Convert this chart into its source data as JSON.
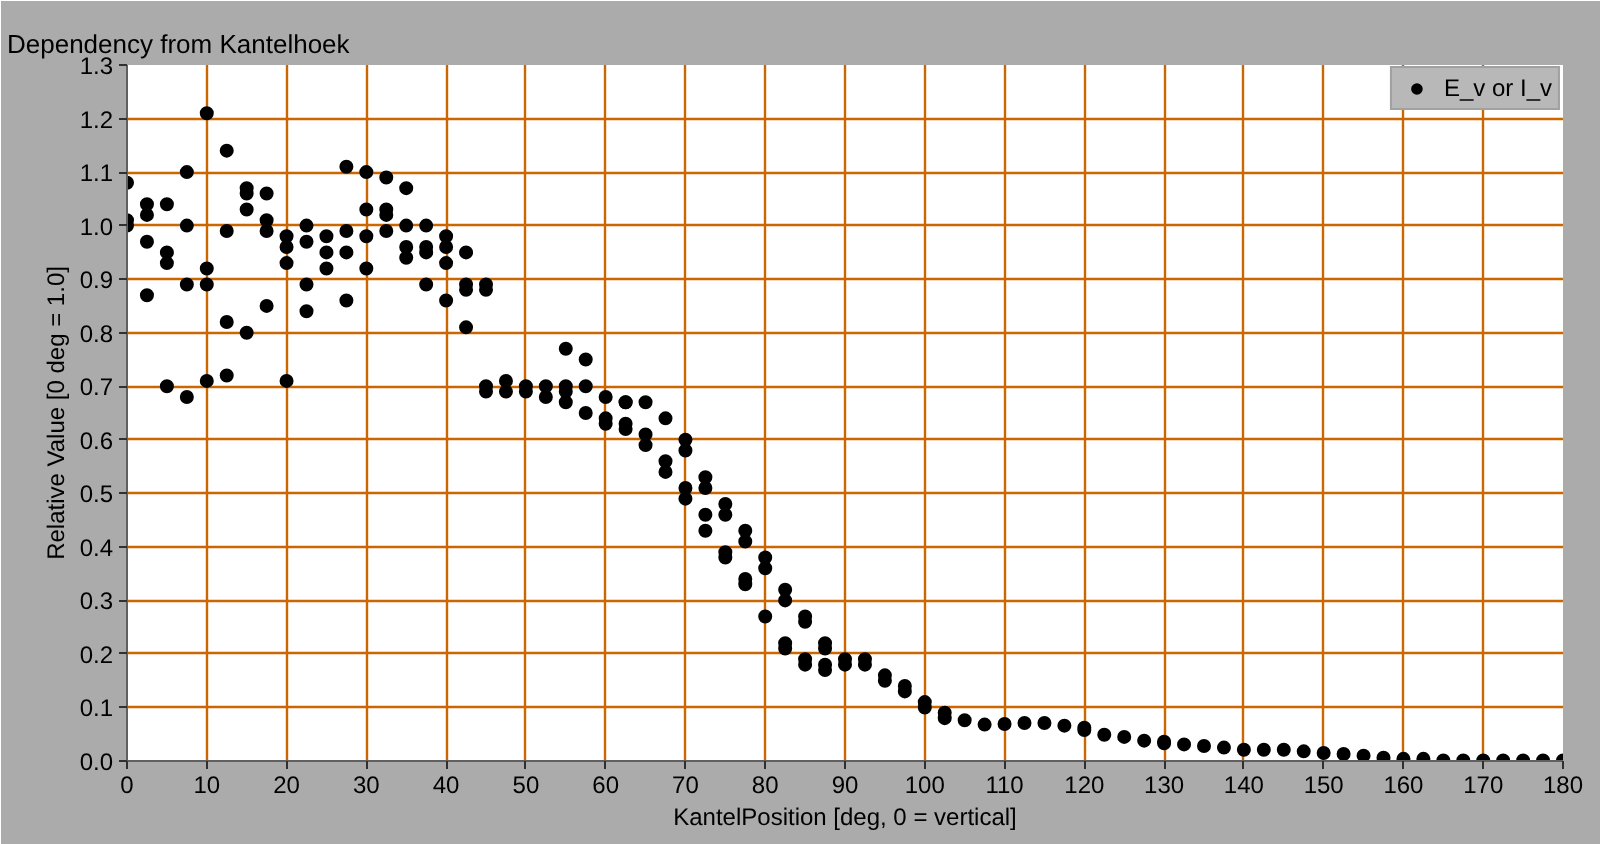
{
  "chart_data": {
    "type": "scatter",
    "title": "Dependency from Kantelhoek",
    "xlabel": "KantelPosition [deg, 0 = vertical]",
    "ylabel": "Relative Value [0 deg = 1.0]",
    "xlim": [
      0,
      180
    ],
    "ylim": [
      0,
      1.3
    ],
    "xticks": [
      0,
      10,
      20,
      30,
      40,
      50,
      60,
      70,
      80,
      90,
      100,
      110,
      120,
      130,
      140,
      150,
      160,
      170,
      180
    ],
    "yticks": [
      {
        "value": 0,
        "label": "0.0"
      },
      0.1,
      0.2,
      0.3,
      0.4,
      0.5,
      0.6,
      0.7,
      0.8,
      0.9,
      {
        "value": 1,
        "label": "1.0"
      },
      1.1,
      1.2,
      1.3
    ],
    "grid": true,
    "legend": "top right",
    "marker": "circle",
    "series": [
      {
        "name": "E_v or I_v",
        "color": "#000000",
        "x": [
          0,
          0,
          0,
          2.5,
          2.5,
          2.5,
          2.5,
          5,
          5,
          5,
          5,
          7.5,
          7.5,
          7.5,
          7.5,
          10,
          10,
          10,
          10,
          12.5,
          12.5,
          12.5,
          12.5,
          15,
          15,
          15,
          15,
          17.5,
          17.5,
          17.5,
          17.5,
          20,
          20,
          20,
          20,
          22.5,
          22.5,
          22.5,
          22.5,
          25,
          25,
          25,
          27.5,
          27.5,
          27.5,
          27.5,
          30,
          30,
          30,
          30,
          32.5,
          32.5,
          32.5,
          32.5,
          35,
          35,
          35,
          35,
          37.5,
          37.5,
          37.5,
          37.5,
          40,
          40,
          40,
          40,
          42.5,
          42.5,
          42.5,
          42.5,
          45,
          45,
          45,
          45,
          47.5,
          47.5,
          50,
          50,
          52.5,
          52.5,
          55,
          55,
          55,
          55,
          57.5,
          57.5,
          57.5,
          60,
          60,
          60,
          62.5,
          62.5,
          62.5,
          62.5,
          65,
          65,
          65,
          67.5,
          67.5,
          67.5,
          70,
          70,
          70,
          70,
          72.5,
          72.5,
          72.5,
          72.5,
          75,
          75,
          75,
          75,
          77.5,
          77.5,
          77.5,
          77.5,
          80,
          80,
          80,
          82.5,
          82.5,
          82.5,
          82.5,
          85,
          85,
          85,
          85,
          87.5,
          87.5,
          87.5,
          87.5,
          90,
          90,
          92.5,
          92.5,
          95,
          95,
          97.5,
          97.5,
          100,
          100,
          102.5,
          102.5,
          105,
          107.5,
          110,
          112.5,
          115,
          117.5,
          120,
          120,
          122.5,
          125,
          127.5,
          130,
          130,
          132.5,
          135,
          137.5,
          140,
          142.5,
          145,
          147.5,
          150,
          152.5,
          155,
          157.5,
          160,
          162.5,
          165,
          167.5,
          170,
          172.5,
          175,
          177.5,
          180
        ],
        "values": [
          1.08,
          1.01,
          1.0,
          1.04,
          1.02,
          0.97,
          0.87,
          1.04,
          0.95,
          0.93,
          0.7,
          1.1,
          1.0,
          0.89,
          0.68,
          1.21,
          0.92,
          0.89,
          0.71,
          1.14,
          0.99,
          0.82,
          0.72,
          1.07,
          1.06,
          1.03,
          0.8,
          1.06,
          1.01,
          0.99,
          0.85,
          0.98,
          0.96,
          0.93,
          0.71,
          1.0,
          0.97,
          0.89,
          0.84,
          0.98,
          0.95,
          0.92,
          1.11,
          0.99,
          0.95,
          0.86,
          1.1,
          1.03,
          0.98,
          0.92,
          1.09,
          1.03,
          1.02,
          0.99,
          1.07,
          1.0,
          0.96,
          0.94,
          1.0,
          0.96,
          0.95,
          0.89,
          0.98,
          0.96,
          0.93,
          0.86,
          0.95,
          0.89,
          0.88,
          0.81,
          0.89,
          0.88,
          0.7,
          0.69,
          0.71,
          0.69,
          0.7,
          0.69,
          0.7,
          0.68,
          0.77,
          0.7,
          0.69,
          0.67,
          0.75,
          0.7,
          0.65,
          0.68,
          0.64,
          0.63,
          0.67,
          0.67,
          0.63,
          0.62,
          0.67,
          0.61,
          0.59,
          0.64,
          0.56,
          0.54,
          0.6,
          0.58,
          0.51,
          0.49,
          0.53,
          0.51,
          0.46,
          0.43,
          0.48,
          0.46,
          0.39,
          0.38,
          0.43,
          0.41,
          0.34,
          0.33,
          0.38,
          0.36,
          0.27,
          0.32,
          0.3,
          0.22,
          0.21,
          0.27,
          0.26,
          0.19,
          0.18,
          0.22,
          0.21,
          0.18,
          0.17,
          0.19,
          0.18,
          0.19,
          0.18,
          0.16,
          0.15,
          0.14,
          0.13,
          0.11,
          0.1,
          0.09,
          0.08,
          0.076,
          0.068,
          0.069,
          0.071,
          0.071,
          0.066,
          0.062,
          0.058,
          0.049,
          0.045,
          0.038,
          0.036,
          0.033,
          0.031,
          0.028,
          0.025,
          0.021,
          0.021,
          0.021,
          0.018,
          0.015,
          0.013,
          0.01,
          0.006,
          0.004,
          0.004,
          0.001,
          0.001,
          0.001,
          0.001,
          0.001,
          0.001,
          0.001
        ]
      }
    ]
  }
}
